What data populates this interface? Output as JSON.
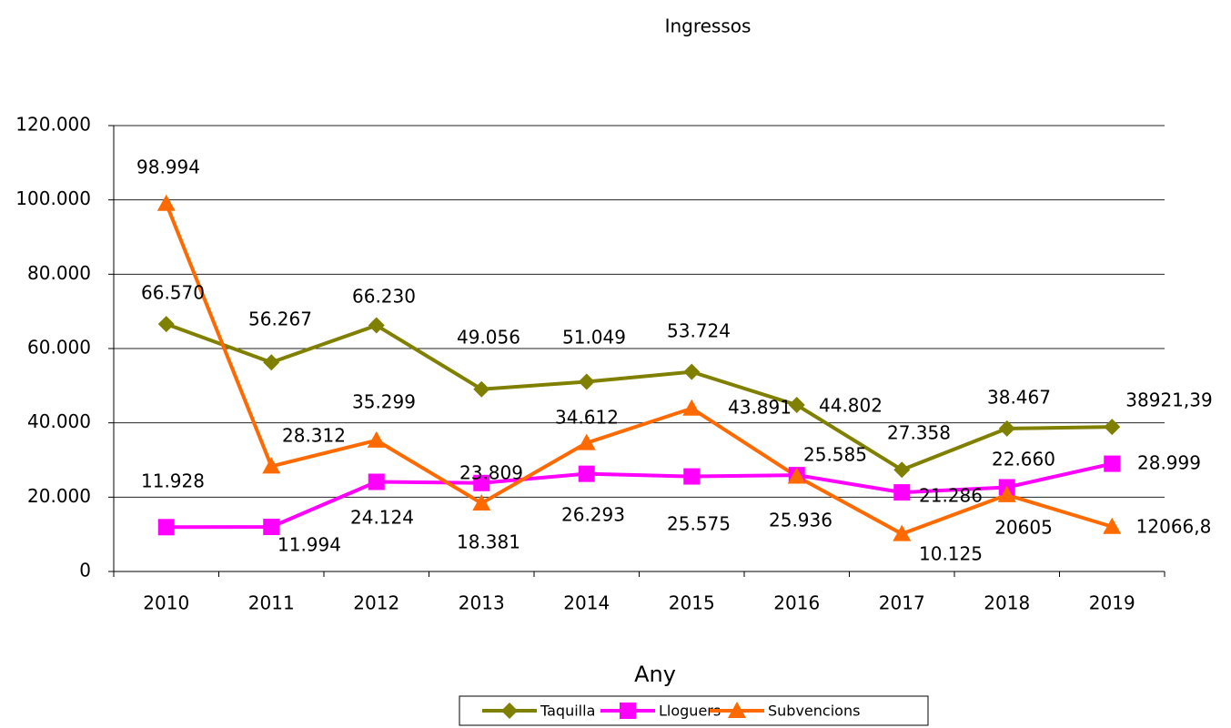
{
  "chart_data": {
    "type": "line",
    "title": "Ingressos",
    "x_label": "Any",
    "categories": [
      "2010",
      "2011",
      "2012",
      "2013",
      "2014",
      "2015",
      "2016",
      "2017",
      "2018",
      "2019"
    ],
    "series": [
      {
        "name": "Taquilla",
        "color": "#808000",
        "marker": "diamond",
        "values": [
          66570,
          56267,
          66230,
          49056,
          51049,
          53724,
          44802,
          27358,
          38467,
          38921.39
        ],
        "value_labels": [
          "66.570",
          "56.267",
          "66.230",
          "49.056",
          "51.049",
          "53.724",
          "44.802",
          "27.358",
          "38.467",
          "38921,39"
        ]
      },
      {
        "name": "Lloguers",
        "color": "#ff00ff",
        "marker": "square",
        "values": [
          11928,
          11994,
          24124,
          23809,
          26293,
          25575,
          25936,
          21286,
          22660,
          28999
        ],
        "value_labels": [
          "11.928",
          "11.994",
          "24.124",
          "23.809",
          "26.293",
          "25.575",
          "25.936",
          "21.286",
          "22.660",
          "28.999"
        ]
      },
      {
        "name": "Subvencions",
        "color": "#ff6a00",
        "marker": "triangle",
        "values": [
          98994,
          28312,
          35299,
          18381,
          34612,
          43891,
          25585,
          10125,
          20605,
          12066.8
        ],
        "value_labels": [
          "98.994",
          "28.312",
          "35.299",
          "18.381",
          "34.612",
          "43.891",
          "25.585",
          "10.125",
          "20605",
          "12066,8"
        ]
      }
    ],
    "ylim": [
      0,
      120000
    ],
    "yticks": [
      0,
      {
        "value": 20000,
        "label": "20.000"
      },
      {
        "value": 40000,
        "label": "40.000"
      },
      {
        "value": 60000,
        "label": "60.000"
      },
      {
        "value": 80000,
        "label": "80.000"
      },
      {
        "value": 100000,
        "label": "100.000"
      },
      {
        "value": 120000,
        "label": "120.000"
      }
    ],
    "grid": true,
    "legend": "bottom"
  }
}
